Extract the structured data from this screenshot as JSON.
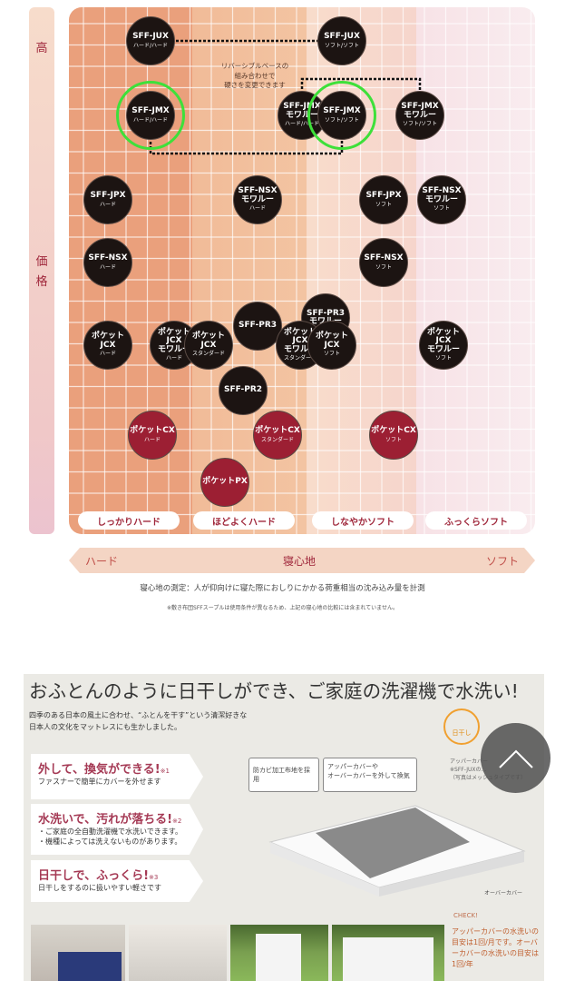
{
  "y_axis": {
    "top_label": "高",
    "label": "価格"
  },
  "x_axis": {
    "left": "ハード",
    "center": "寝心地",
    "right": "ソフト"
  },
  "columns": [
    "しっかりハード",
    "ほどよくハード",
    "しなやかソフト",
    "ふっくらソフト"
  ],
  "reversible_note": "リバーシブルベースの\n組み合わせで\n硬さを変更できます",
  "products": [
    {
      "name": "SFF-JUX",
      "sub": "ハード/ハード",
      "color": "black"
    },
    {
      "name": "SFF-JUX",
      "sub": "ソフト/ソフト",
      "color": "black"
    },
    {
      "name": "SFF-JMX",
      "sub": "ハード/ハード",
      "color": "black",
      "highlighted": true
    },
    {
      "name": "SFF-JMX\nモワルー",
      "sub": "ハード/ハード",
      "color": "black"
    },
    {
      "name": "SFF-JMX",
      "sub": "ソフト/ソフト",
      "color": "black",
      "highlighted": true
    },
    {
      "name": "SFF-JMX\nモワルー",
      "sub": "ソフト/ソフト",
      "color": "black"
    },
    {
      "name": "SFF-JPX",
      "sub": "ハード",
      "color": "black"
    },
    {
      "name": "SFF-NSX\nモワルー",
      "sub": "ハード",
      "color": "black"
    },
    {
      "name": "SFF-JPX",
      "sub": "ソフト",
      "color": "black"
    },
    {
      "name": "SFF-NSX\nモワルー",
      "sub": "ソフト",
      "color": "black"
    },
    {
      "name": "SFF-NSX",
      "sub": "ハード",
      "color": "black"
    },
    {
      "name": "SFF-NSX",
      "sub": "ソフト",
      "color": "black"
    },
    {
      "name": "SFF-PR3",
      "sub": "",
      "color": "black"
    },
    {
      "name": "SFF-PR3\nモワルー",
      "sub": "",
      "color": "black"
    },
    {
      "name": "ポケットJCX",
      "sub": "ハード",
      "color": "black"
    },
    {
      "name": "ポケット\nJCX\nモワルー",
      "sub": "ハード",
      "color": "black"
    },
    {
      "name": "ポケットJCX",
      "sub": "スタンダード",
      "color": "black"
    },
    {
      "name": "ポケット\nJCX\nモワルー",
      "sub": "スタンダード",
      "color": "black"
    },
    {
      "name": "ポケットJCX",
      "sub": "ソフト",
      "color": "black"
    },
    {
      "name": "ポケットJCX\nモワルー",
      "sub": "ソフト",
      "color": "black"
    },
    {
      "name": "SFF-PR2",
      "sub": "",
      "color": "black"
    },
    {
      "name": "ポケットCX",
      "sub": "ハード",
      "color": "red"
    },
    {
      "name": "ポケットCX",
      "sub": "スタンダード",
      "color": "red"
    },
    {
      "name": "ポケットCX",
      "sub": "ソフト",
      "color": "red"
    },
    {
      "name": "ポケットPX",
      "sub": "",
      "color": "red"
    }
  ],
  "measurement_note": "寝心地の測定：人が仰向けに寝た際におしりにかかる荷重相当の沈み込み量を計測",
  "footnote": "※敷き布団SFFスープルは使用条件が異なるため、上記の寝心地の比較には含まれていません。",
  "lower": {
    "headline": "おふとんのように日干しができ、ご家庭の洗濯機で水洗い!",
    "intro": "四季のある日本の風土に合わせ、“ふとんを干す”という清潔好きな\n日本人の文化をマットレスにも生かしました。",
    "features": [
      {
        "title": "外して、換気ができる!",
        "mark": "※1",
        "desc": "ファスナーで簡単にカバーを外せます"
      },
      {
        "title": "水洗いで、汚れが落ちる!",
        "mark": "※2",
        "desc": "・ご家庭の全自動洗濯機で水洗いできます。\n・機種によっては洗えないものがあります。"
      },
      {
        "title": "日干しで、ふっくら!",
        "mark": "※3",
        "desc": "日干しをするのに扱いやすい軽さです"
      }
    ],
    "callouts": [
      "防カビ加工布地を採用",
      "アッパーカバーや\nオーバーカバーを外して換気"
    ],
    "upper_cover_note": "アッパーカバー\n※SFF-JUXの…\n（写真はメッシュタイプです）",
    "over_cover_label": "オーバーカバー",
    "sun_badge": "日干し",
    "check_title": "CHECK!",
    "check_text": "アッパーカバーの水洗いの目安は1回/月です。オーバーカバーの水洗いの目安は1回/年"
  },
  "scroll_top_button": {
    "icon": "chevron-up-icon"
  }
}
